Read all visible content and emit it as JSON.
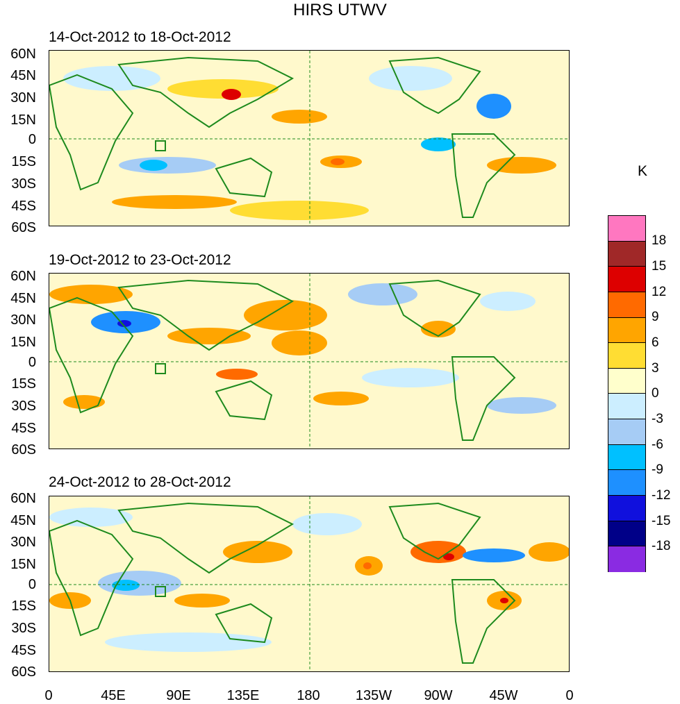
{
  "title": "HIRS UTWV",
  "colorbar": {
    "unit": "K",
    "labels": [
      "18",
      "15",
      "12",
      "9",
      "6",
      "3",
      "0",
      "-3",
      "-6",
      "-9",
      "-12",
      "-15",
      "-18"
    ],
    "colors": [
      "#ff77c0",
      "#a02828",
      "#dd0000",
      "#ff6a00",
      "#ffa500",
      "#ffdd33",
      "#ffffcc",
      "#cceeff",
      "#a6ccf5",
      "#00c0ff",
      "#1e90ff",
      "#1010dd",
      "#000088",
      "#8a2be2"
    ]
  },
  "axes": {
    "y_labels": [
      "60N",
      "45N",
      "30N",
      "15N",
      "0",
      "15S",
      "30S",
      "45S",
      "60S"
    ],
    "x_labels": [
      "0",
      "45E",
      "90E",
      "135E",
      "180",
      "135W",
      "90W",
      "45W",
      "0"
    ]
  },
  "panels": [
    {
      "title": "14-Oct-2012 to 18-Oct-2012"
    },
    {
      "title": "19-Oct-2012 to 23-Oct-2012"
    },
    {
      "title": "24-Oct-2012 to 28-Oct-2012"
    }
  ],
  "colors": {
    "coastline": "#1d8a1d",
    "reference_line": "#1d8a1d"
  }
}
